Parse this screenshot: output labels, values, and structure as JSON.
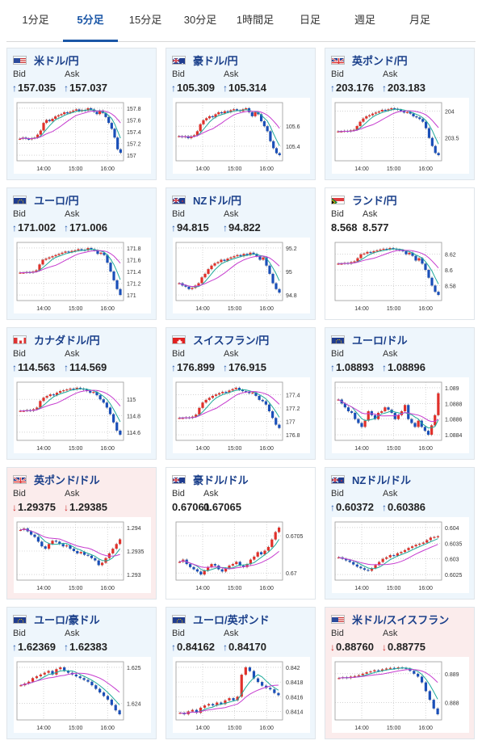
{
  "tabs": [
    "1分足",
    "5分足",
    "15分足",
    "30分足",
    "1時間足",
    "日足",
    "週足",
    "月足"
  ],
  "active_tab": 1,
  "labels": {
    "bid": "Bid",
    "ask": "Ask"
  },
  "cards": [
    {
      "pair": "米ドル/円",
      "flag": "us",
      "bid": "157.035",
      "ask": "157.037",
      "dir": "up",
      "bg": "blue",
      "ticks": [
        "157.8",
        "157.6",
        "157.4",
        "157.2",
        "157"
      ],
      "xticks": [
        "14:00",
        "15:00",
        "16:00"
      ],
      "series": [
        157.28,
        157.3,
        157.28,
        157.27,
        157.29,
        157.3,
        157.35,
        157.42,
        157.55,
        157.6,
        157.58,
        157.62,
        157.66,
        157.68,
        157.7,
        157.73,
        157.72,
        157.74,
        157.76,
        157.78,
        157.75,
        157.77,
        157.76,
        157.8,
        157.78,
        157.74,
        157.7,
        157.76,
        157.72,
        157.65,
        157.55,
        157.45,
        157.3,
        157.1,
        157.04
      ]
    },
    {
      "pair": "豪ドル/円",
      "flag": "au",
      "bid": "105.309",
      "ask": "105.314",
      "dir": "up",
      "bg": "blue",
      "ticks": [
        "105.6",
        "105.4"
      ],
      "xticks": [
        "14:00",
        "15:00",
        "16:00"
      ],
      "series": [
        105.5,
        105.49,
        105.5,
        105.48,
        105.5,
        105.51,
        105.55,
        105.62,
        105.66,
        105.68,
        105.7,
        105.69,
        105.72,
        105.74,
        105.73,
        105.75,
        105.74,
        105.76,
        105.77,
        105.76,
        105.75,
        105.77,
        105.78,
        105.74,
        105.7,
        105.74,
        105.72,
        105.65,
        105.6,
        105.55,
        105.45,
        105.38,
        105.33,
        105.31
      ]
    },
    {
      "pair": "英ポンド/円",
      "flag": "gb",
      "bid": "203.176",
      "ask": "203.183",
      "dir": "up",
      "bg": "blue",
      "ticks": [
        "204",
        "203.5"
      ],
      "xticks": [
        "14:00",
        "15:00",
        "16:00"
      ],
      "series": [
        203.62,
        203.62,
        203.63,
        203.62,
        203.64,
        203.65,
        203.72,
        203.8,
        203.86,
        203.9,
        203.92,
        203.95,
        203.97,
        203.99,
        204.02,
        204.01,
        204.03,
        204.05,
        204.04,
        204.02,
        204.0,
        203.97,
        203.98,
        203.95,
        203.9,
        203.88,
        203.85,
        203.8,
        203.68,
        203.5,
        203.35,
        203.22,
        203.18
      ]
    },
    {
      "pair": "ユーロ/円",
      "flag": "eu",
      "bid": "171.002",
      "ask": "171.006",
      "dir": "up",
      "bg": "blue",
      "ticks": [
        "171.8",
        "171.6",
        "171.4",
        "171.2",
        "171"
      ],
      "xticks": [
        "14:00",
        "15:00",
        "16:00"
      ],
      "series": [
        171.38,
        171.38,
        171.39,
        171.38,
        171.4,
        171.42,
        171.52,
        171.6,
        171.62,
        171.64,
        171.66,
        171.68,
        171.7,
        171.72,
        171.74,
        171.73,
        171.75,
        171.76,
        171.78,
        171.77,
        171.76,
        171.8,
        171.78,
        171.76,
        171.7,
        171.72,
        171.68,
        171.55,
        171.4,
        171.25,
        171.1,
        171.0
      ]
    },
    {
      "pair": "NZドル/円",
      "flag": "nz",
      "bid": "94.815",
      "ask": "94.822",
      "dir": "up",
      "bg": "blue",
      "ticks": [
        "95.2",
        "95",
        "94.8"
      ],
      "xticks": [
        "14:00",
        "15:00",
        "16:00"
      ],
      "series": [
        94.9,
        94.88,
        94.87,
        94.85,
        94.86,
        94.88,
        94.9,
        94.95,
        94.98,
        95.02,
        95.05,
        95.07,
        95.08,
        95.1,
        95.09,
        95.11,
        95.12,
        95.13,
        95.14,
        95.13,
        95.15,
        95.14,
        95.16,
        95.15,
        95.13,
        95.1,
        95.12,
        95.05,
        94.98,
        94.9,
        94.85,
        94.82
      ]
    },
    {
      "pair": "ランド/円",
      "flag": "za",
      "bid": "8.568",
      "ask": "8.577",
      "dir": "none",
      "bg": "plain",
      "ticks": [
        "8.62",
        "8.6",
        "8.58"
      ],
      "xticks": [
        "14:00",
        "15:00",
        "16:00"
      ],
      "series": [
        8.608,
        8.608,
        8.609,
        8.608,
        8.61,
        8.611,
        8.615,
        8.62,
        8.621,
        8.623,
        8.622,
        8.624,
        8.625,
        8.626,
        8.627,
        8.626,
        8.628,
        8.627,
        8.626,
        8.625,
        8.624,
        8.62,
        8.622,
        8.618,
        8.612,
        8.615,
        8.608,
        8.6,
        8.59,
        8.58,
        8.572,
        8.568
      ]
    },
    {
      "pair": "カナダドル/円",
      "flag": "ca",
      "bid": "114.563",
      "ask": "114.569",
      "dir": "up",
      "bg": "blue",
      "ticks": [
        "115",
        "114.8",
        "114.6"
      ],
      "xticks": [
        "14:00",
        "15:00",
        "16:00"
      ],
      "series": [
        114.86,
        114.86,
        114.87,
        114.86,
        114.88,
        114.9,
        114.98,
        115.02,
        115.04,
        115.06,
        115.05,
        115.08,
        115.1,
        115.11,
        115.12,
        115.13,
        115.12,
        115.14,
        115.13,
        115.12,
        115.1,
        115.08,
        115.09,
        115.05,
        115.0,
        114.96,
        114.9,
        114.82,
        114.72,
        114.62,
        114.57
      ]
    },
    {
      "pair": "スイスフラン/円",
      "flag": "ch",
      "bid": "176.899",
      "ask": "176.915",
      "dir": "up",
      "bg": "blue",
      "ticks": [
        "177.4",
        "177.2",
        "177",
        "176.8"
      ],
      "xticks": [
        "14:00",
        "15:00",
        "16:00"
      ],
      "series": [
        177.05,
        177.05,
        177.06,
        177.05,
        177.07,
        177.1,
        177.2,
        177.28,
        177.32,
        177.35,
        177.38,
        177.4,
        177.42,
        177.44,
        177.43,
        177.46,
        177.48,
        177.5,
        177.47,
        177.45,
        177.44,
        177.42,
        177.43,
        177.38,
        177.32,
        177.3,
        177.25,
        177.15,
        177.05,
        176.95,
        176.9
      ]
    },
    {
      "pair": "ユーロ/ドル",
      "flag": "eu",
      "bid": "1.08893",
      "ask": "1.08896",
      "dir": "up",
      "bg": "blue",
      "ticks": [
        "1.089",
        "1.0888",
        "1.0886",
        "1.0884"
      ],
      "xticks": [
        "14:00",
        "15:00",
        "16:00"
      ],
      "series": [
        1.08885,
        1.0888,
        1.08875,
        1.0887,
        1.08868,
        1.0886,
        1.08855,
        1.0885,
        1.08858,
        1.0887,
        1.08865,
        1.0886,
        1.08868,
        1.0887,
        1.08875,
        1.08872,
        1.08868,
        1.0886,
        1.08865,
        1.0887,
        1.08878,
        1.0886,
        1.08855,
        1.0885,
        1.08858,
        1.0885,
        1.08845,
        1.0884,
        1.08852,
        1.08865,
        1.08893
      ]
    },
    {
      "pair": "英ポンド/ドル",
      "flag": "gb",
      "bid": "1.29375",
      "ask": "1.29385",
      "dir": "dn",
      "bg": "down",
      "ticks": [
        "1.294",
        "1.2935",
        "1.293"
      ],
      "xticks": [
        "14:00",
        "15:00",
        "16:00"
      ],
      "series": [
        1.29395,
        1.29398,
        1.29392,
        1.29385,
        1.2938,
        1.2937,
        1.2936,
        1.29355,
        1.29365,
        1.29372,
        1.2937,
        1.29365,
        1.2936,
        1.29362,
        1.29355,
        1.2935,
        1.29345,
        1.29348,
        1.29342,
        1.2934,
        1.29335,
        1.2933,
        1.2932,
        1.29325,
        1.29335,
        1.29345,
        1.29355,
        1.29365,
        1.29375
      ]
    },
    {
      "pair": "豪ドル/ドル",
      "flag": "au",
      "bid": "0.67061",
      "ask": "0.67065",
      "dir": "none",
      "bg": "plain",
      "ticks": [
        "0.6705",
        "0.67"
      ],
      "xticks": [
        "14:00",
        "15:00",
        "16:00"
      ],
      "series": [
        0.67015,
        0.67018,
        0.67012,
        0.67008,
        0.67005,
        0.67002,
        0.66998,
        0.67003,
        0.67008,
        0.67012,
        0.6701,
        0.67005,
        0.67002,
        0.67006,
        0.6701,
        0.67012,
        0.67015,
        0.6701,
        0.67008,
        0.67012,
        0.67018,
        0.67022,
        0.67028,
        0.67025,
        0.6703,
        0.67035,
        0.67045,
        0.67055,
        0.67061
      ]
    },
    {
      "pair": "NZドル/ドル",
      "flag": "nz",
      "bid": "0.60372",
      "ask": "0.60386",
      "dir": "up",
      "bg": "blue",
      "ticks": [
        "0.604",
        "0.6035",
        "0.603",
        "0.6025"
      ],
      "xticks": [
        "14:00",
        "15:00",
        "16:00"
      ],
      "series": [
        0.60305,
        0.603,
        0.60295,
        0.6029,
        0.60282,
        0.60275,
        0.6027,
        0.60265,
        0.60262,
        0.6027,
        0.6028,
        0.6029,
        0.603,
        0.60305,
        0.60312,
        0.6031,
        0.60318,
        0.60322,
        0.60328,
        0.60335,
        0.6034,
        0.60345,
        0.60348,
        0.60352,
        0.6036,
        0.60368,
        0.6037,
        0.60372
      ]
    },
    {
      "pair": "ユーロ/豪ドル",
      "flag": "eu",
      "bid": "1.62369",
      "ask": "1.62383",
      "dir": "up",
      "bg": "blue",
      "ticks": [
        "1.625",
        "1.624"
      ],
      "xticks": [
        "14:00",
        "15:00",
        "16:00"
      ],
      "series": [
        1.6245,
        1.62455,
        1.6246,
        1.6247,
        1.62475,
        1.6248,
        1.62485,
        1.6249,
        1.6248,
        1.62495,
        1.625,
        1.6249,
        1.62485,
        1.6248,
        1.62475,
        1.6247,
        1.62465,
        1.6246,
        1.6245,
        1.6244,
        1.6243,
        1.6242,
        1.6241,
        1.62395,
        1.6238,
        1.62369
      ]
    },
    {
      "pair": "ユーロ/英ポンド",
      "flag": "eu",
      "bid": "0.84162",
      "ask": "0.84170",
      "dir": "up",
      "bg": "blue",
      "ticks": [
        "0.842",
        "0.8418",
        "0.8416",
        "0.8414"
      ],
      "xticks": [
        "14:00",
        "15:00",
        "16:00"
      ],
      "series": [
        0.84138,
        0.84136,
        0.8414,
        0.84142,
        0.84138,
        0.84145,
        0.84148,
        0.8415,
        0.84148,
        0.84152,
        0.8415,
        0.84155,
        0.84158,
        0.84155,
        0.8416,
        0.8419,
        0.842,
        0.84195,
        0.84185,
        0.8418,
        0.84175,
        0.84172,
        0.8417,
        0.84165,
        0.84162
      ]
    },
    {
      "pair": "米ドル/スイスフラン",
      "flag": "us",
      "bid": "0.88760",
      "ask": "0.88775",
      "dir": "dn",
      "bg": "down",
      "ticks": [
        "0.889",
        "0.888"
      ],
      "xticks": [
        "14:00",
        "15:00",
        "16:00"
      ],
      "series": [
        0.88885,
        0.88888,
        0.88885,
        0.8889,
        0.88892,
        0.88895,
        0.889,
        0.88905,
        0.88908,
        0.88912,
        0.8891,
        0.88915,
        0.88918,
        0.8892,
        0.88918,
        0.88922,
        0.8892,
        0.88918,
        0.8891,
        0.889,
        0.8889,
        0.8887,
        0.8884,
        0.8881,
        0.8878,
        0.8876
      ]
    }
  ]
}
